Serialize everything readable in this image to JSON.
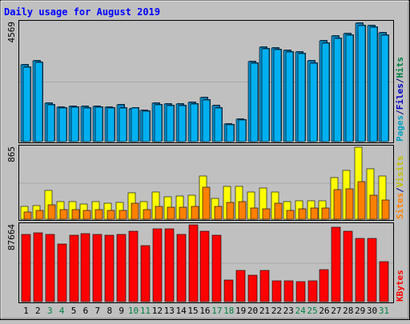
{
  "chart_data": {
    "type": "bar",
    "title": "Daily usage for August 2019",
    "categories": [
      "1",
      "2",
      "3",
      "4",
      "5",
      "6",
      "7",
      "8",
      "9",
      "10",
      "11",
      "12",
      "13",
      "14",
      "15",
      "16",
      "17",
      "18",
      "19",
      "20",
      "21",
      "22",
      "23",
      "24",
      "25",
      "26",
      "27",
      "28",
      "29",
      "30",
      "31"
    ],
    "weekend_days": [
      "3",
      "4",
      "10",
      "11",
      "17",
      "18",
      "24",
      "25",
      "31"
    ],
    "panels": [
      {
        "id": "top",
        "ymax_label": "4569",
        "ymax": 4569,
        "legend": [
          {
            "text": "Pages",
            "color": "#00a0c0"
          },
          {
            "text": "/",
            "color": "#000080"
          },
          {
            "text": "Files",
            "color": "#0000c0"
          },
          {
            "text": "/",
            "color": "#000080"
          },
          {
            "text": "Hits",
            "color": "#008040"
          }
        ],
        "series": [
          {
            "name": "Hits",
            "color": "#0090d0",
            "values": [
              2951,
              3101,
              1460,
              1330,
              1360,
              1340,
              1340,
              1320,
              1400,
              1260,
              1210,
              1460,
              1430,
              1440,
              1500,
              1680,
              1370,
              684,
              870,
              3080,
              3630,
              3600,
              3490,
              3430,
              3090,
              3850,
              4050,
              4140,
              4540,
              4460,
              4160
            ]
          },
          {
            "name": "Files",
            "color": "#00b0f0",
            "values": [
              2860,
              3040,
              1420,
              1290,
              1320,
              1300,
              1310,
              1290,
              1300,
              1300,
              1180,
              1400,
              1390,
              1390,
              1440,
              1580,
              1300,
              640,
              840,
              2990,
              3560,
              3540,
              3420,
              3380,
              2990,
              3760,
              3970,
              4080,
              4440,
              4400,
              4080
            ]
          },
          {
            "name": "Pages",
            "color": "#00c0f0",
            "values": []
          }
        ]
      },
      {
        "id": "middle",
        "ymax_label": "865",
        "ymax": 865,
        "legend": [
          {
            "text": "Sites",
            "color": "#ff8000"
          },
          {
            "text": "/",
            "color": "#000080"
          },
          {
            "text": "Visits",
            "color": "#c0c000"
          }
        ],
        "series": [
          {
            "name": "Visits",
            "color": "#ffff00",
            "values": [
              150,
              165,
              345,
              215,
              210,
              180,
              210,
              195,
              200,
              315,
              210,
              330,
              265,
              280,
              285,
              520,
              250,
              395,
              390,
              330,
              375,
              330,
              215,
              220,
              220,
              220,
              495,
              590,
              865,
              610,
              520
            ]
          },
          {
            "name": "Sites",
            "color": "#ff8000",
            "values": [
              90,
              110,
              175,
              120,
              120,
              110,
              120,
              110,
              110,
              195,
              120,
              155,
              140,
              140,
              150,
              380,
              155,
              200,
              210,
              130,
              125,
              190,
              110,
              125,
              130,
              135,
              355,
              365,
              450,
              290,
              230
            ]
          }
        ]
      },
      {
        "id": "bottom",
        "ymax_label": "87664",
        "ymax": 87664,
        "legend": [
          {
            "text": "KBytes",
            "color": "#ff0000"
          }
        ],
        "series": [
          {
            "name": "KBytes",
            "color": "#ff0000",
            "values": [
              76800,
              78500,
              77100,
              66000,
              76100,
              77200,
              76300,
              75600,
              77100,
              80200,
              64300,
              83000,
              82700,
              76900,
              87664,
              80300,
              75600,
              25000,
              35200,
              29800,
              36000,
              23900,
              24100,
              23100,
              24100,
              36300,
              84600,
              80600,
              72300,
              71800,
              45500
            ]
          }
        ]
      }
    ]
  }
}
